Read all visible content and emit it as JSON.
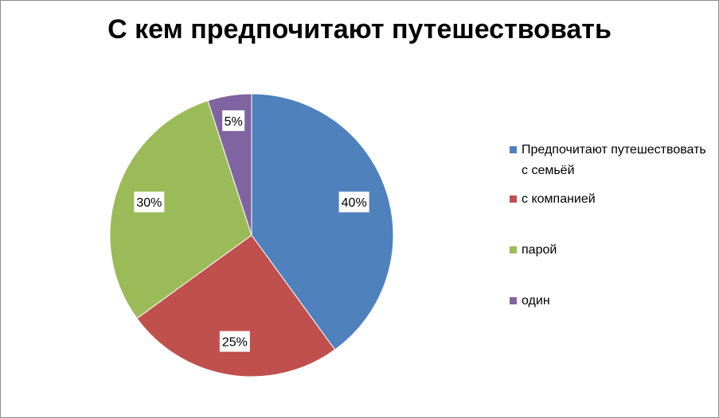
{
  "chart_data": {
    "type": "pie",
    "title": "С кем предпочитают путешествовать",
    "legend_position": "right",
    "slices": [
      {
        "label": "Предпочитают путешествовать с семьёй",
        "value": 40,
        "display": "40%",
        "color": "#4f81bd"
      },
      {
        "label": "с компанией",
        "value": 25,
        "display": "25%",
        "color": "#c0504d"
      },
      {
        "label": "парой",
        "value": 30,
        "display": "30%",
        "color": "#9bbb59"
      },
      {
        "label": "один",
        "value": 5,
        "display": "5%",
        "color": "#8064a2"
      }
    ]
  }
}
